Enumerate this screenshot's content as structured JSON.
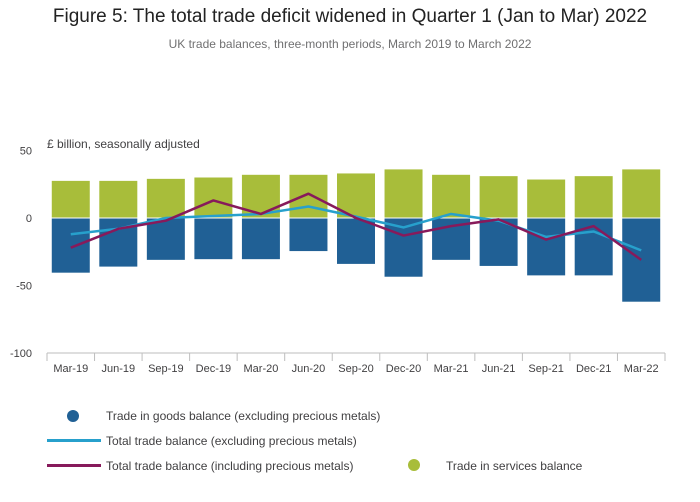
{
  "title": "Figure 5: The total trade deficit widened in Quarter 1 (Jan to Mar) 2022",
  "subtitle": "UK trade balances, three-month periods, March 2019 to March 2022",
  "unit_label": "£ billion, seasonally adjusted",
  "colors": {
    "goods": "#206095",
    "services": "#a8bd3a",
    "total_excl": "#27a0cc",
    "total_incl": "#871a5b",
    "axis": "#bebebe",
    "text": "#414042"
  },
  "chart_data": {
    "type": "bar",
    "stacked": true,
    "categories": [
      "Mar-19",
      "Jun-19",
      "Sep-19",
      "Dec-19",
      "Mar-20",
      "Jun-20",
      "Sep-20",
      "Dec-20",
      "Mar-21",
      "Jun-21",
      "Sep-21",
      "Dec-21",
      "Mar-22"
    ],
    "ylim": [
      -100,
      50
    ],
    "yticks": [
      50,
      0,
      -50,
      -100
    ],
    "ylabel": "£ billion, seasonally adjusted",
    "grid": false,
    "series": [
      {
        "name": "Trade in goods balance (excluding precious metals)",
        "type": "bar",
        "values": [
          -40.5,
          -36,
          -31,
          -30.5,
          -30.5,
          -24.5,
          -34,
          -43.5,
          -31,
          -35.5,
          -42.5,
          -42.5,
          -62
        ]
      },
      {
        "name": "Trade in services balance",
        "type": "bar",
        "values": [
          27.5,
          27.5,
          29,
          30,
          32,
          32,
          33,
          36,
          32,
          31,
          28.5,
          31,
          36
        ]
      },
      {
        "name": "Total trade balance (excluding precious metals)",
        "type": "line",
        "values": [
          -12,
          -8,
          0,
          1.5,
          3,
          8.5,
          1,
          -7,
          3,
          -2,
          -14,
          -10,
          -24
        ]
      },
      {
        "name": "Total trade balance (including precious metals)",
        "type": "line",
        "values": [
          -22,
          -8,
          -2,
          13,
          3,
          18,
          0,
          -13,
          -6,
          -1,
          -16,
          -6,
          -31
        ]
      }
    ]
  },
  "legend": [
    {
      "label": "Trade in goods balance (excluding precious metals)",
      "icon": "dot",
      "color": "#206095"
    },
    {
      "label": "Total trade balance (excluding precious metals)",
      "icon": "line",
      "color": "#27a0cc"
    },
    {
      "label": "Total trade balance (including precious metals)",
      "icon": "line",
      "color": "#871a5b"
    },
    {
      "label": "Trade in services balance",
      "icon": "dot",
      "color": "#a8bd3a"
    }
  ]
}
